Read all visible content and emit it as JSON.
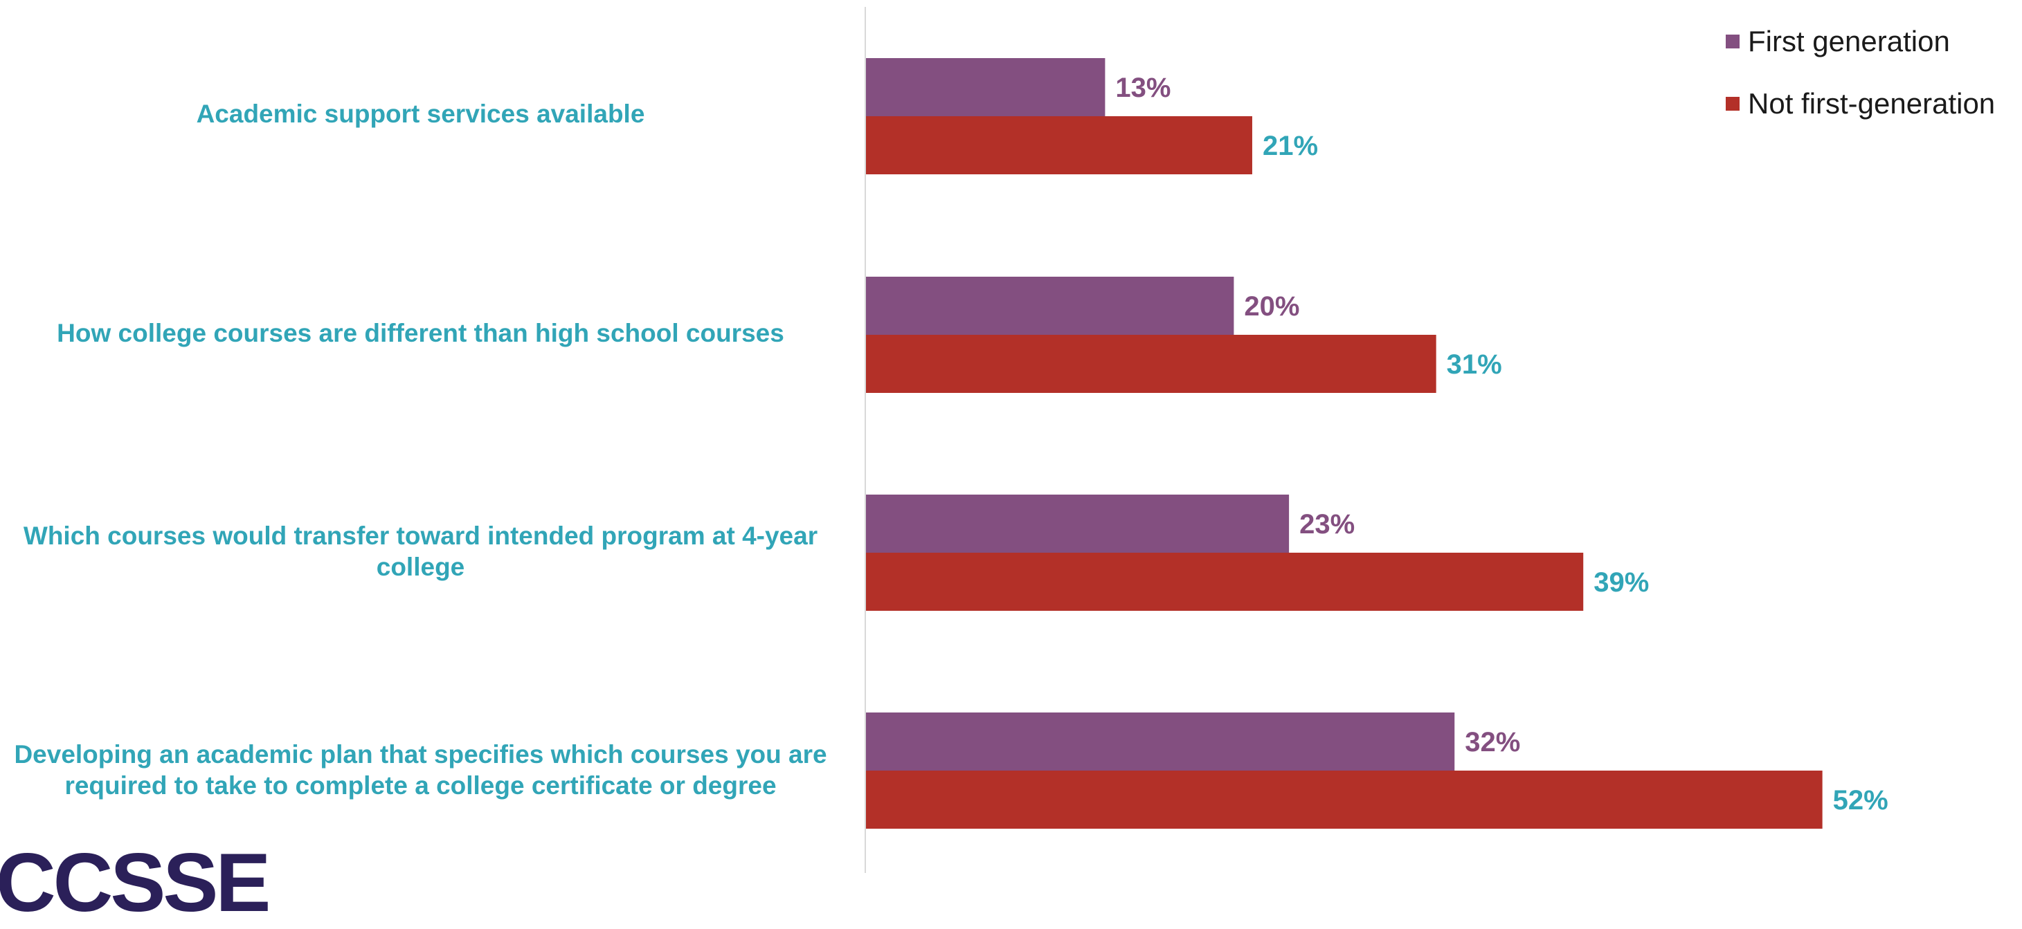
{
  "chart_data": {
    "type": "bar",
    "orientation": "horizontal",
    "categories": [
      "Academic support services available",
      "How college courses are different than high school courses",
      "Which courses would transfer toward intended program at 4-year college",
      "Developing an academic plan that specifies which courses you are required to take to complete a college certificate or degree"
    ],
    "series": [
      {
        "name": "First generation",
        "color": "#834f80",
        "values": [
          13,
          20,
          23,
          32
        ],
        "labels": [
          "13%",
          "20%",
          "23%",
          "32%"
        ]
      },
      {
        "name": "Not first-generation",
        "color": "#b33028",
        "values": [
          21,
          31,
          39,
          52
        ],
        "labels": [
          "21%",
          "31%",
          "39%",
          "52%"
        ]
      }
    ],
    "xlim": [
      0,
      60
    ],
    "legend_position": "top-right",
    "grid": false,
    "value_label_color": "#31a5b7",
    "first_gen_label_color": "#834f80",
    "axis_color": "#d9d9d9"
  },
  "logo": {
    "text": "CCSSE"
  }
}
